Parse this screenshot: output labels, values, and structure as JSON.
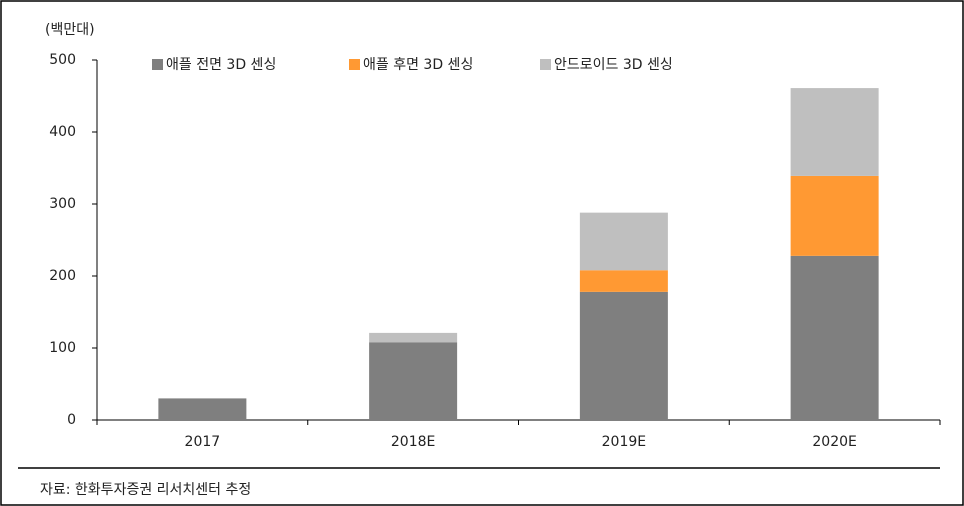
{
  "chart_data": {
    "type": "stacked_bar",
    "unit_label": "(백만대)",
    "source": "자료: 한화투자증권 리서치센터 추정",
    "categories": [
      "2017",
      "2018E",
      "2019E",
      "2020E"
    ],
    "series": [
      {
        "name": "애플 전면 3D 센싱",
        "color": "#7f7f7f",
        "values": [
          30,
          108,
          178,
          228
        ]
      },
      {
        "name": "애플 후면 3D 센싱",
        "color": "#ff9933",
        "values": [
          0,
          0,
          30,
          111
        ]
      },
      {
        "name": "안드로이드 3D 센싱",
        "color": "#bfbfbf",
        "values": [
          0,
          13,
          80,
          122
        ]
      }
    ],
    "ylim": [
      0,
      500
    ],
    "yticks": [
      0,
      100,
      200,
      300,
      400,
      500
    ],
    "legend": "top"
  }
}
